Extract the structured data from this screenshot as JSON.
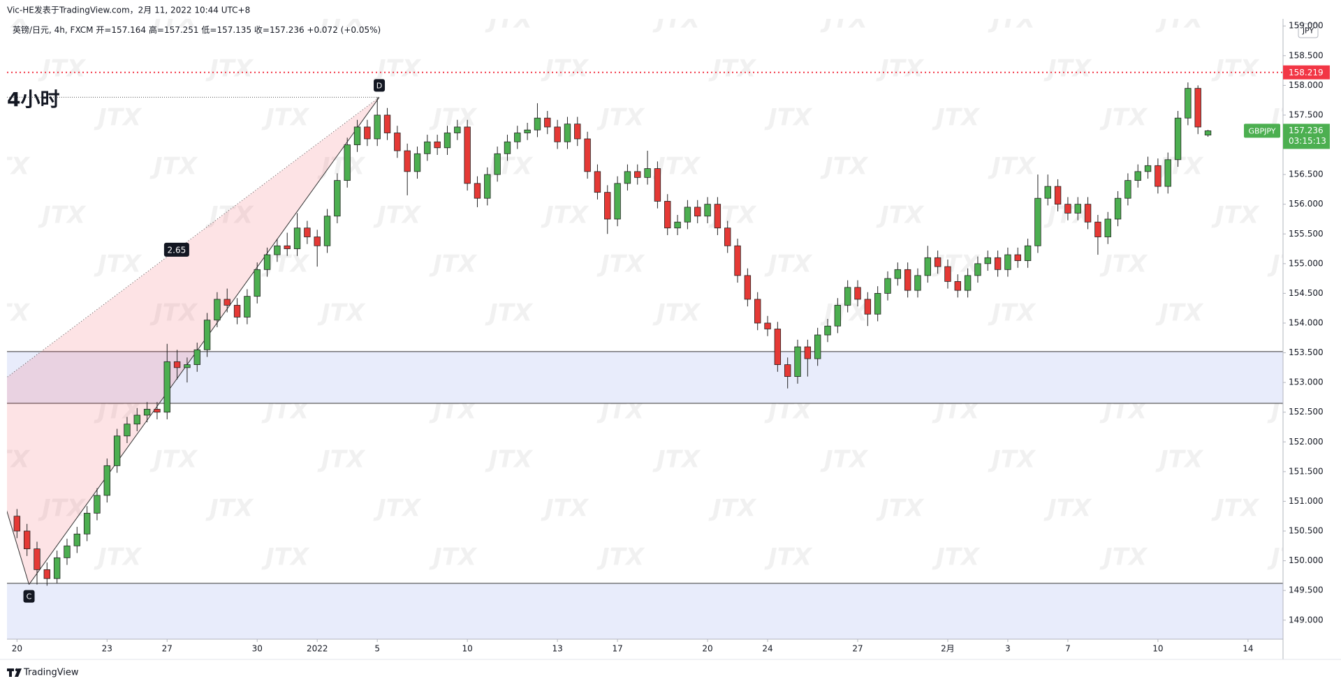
{
  "header": {
    "byline": "Vic-HE发表于TradingView.com，2月 11, 2022 10:44 UTC+8",
    "footer": "TradingView"
  },
  "chart_data": {
    "type": "candlestick",
    "title": "4小时",
    "symbol": "英镑/日元, 4h, FXCM",
    "ohlc_labels": [
      "开=",
      "高=",
      "低=",
      "收="
    ],
    "change": "+0.072 (+0.05%)",
    "currency": "JPY",
    "ticker": "GBPJPY",
    "countdown": "03:15:13",
    "watermark": "JTX",
    "up_color": "#4caf50",
    "down_color": "#e53935",
    "open": [
      150.75,
      150.5,
      150.2,
      149.85,
      149.7,
      150.05,
      150.25,
      150.45,
      150.8,
      151.1,
      151.6,
      152.1,
      152.3,
      152.45,
      152.55,
      152.5,
      153.35,
      153.25,
      153.3,
      153.55,
      154.05,
      154.4,
      154.3,
      154.1,
      154.45,
      154.9,
      155.15,
      155.3,
      155.25,
      155.6,
      155.45,
      155.3,
      155.8,
      156.4,
      157.0,
      157.3,
      157.1,
      157.5,
      157.2,
      156.9,
      156.55,
      156.85,
      157.05,
      156.95,
      157.2,
      157.3,
      156.35,
      156.1,
      156.5,
      156.85,
      157.05,
      157.2,
      157.25,
      157.45,
      157.3,
      157.05,
      157.35,
      157.1,
      156.55,
      156.2,
      155.75,
      156.35,
      156.55,
      156.45,
      156.6,
      156.05,
      155.6,
      155.7,
      155.95,
      155.8,
      156.0,
      155.6,
      155.3,
      154.8,
      154.4,
      154.0,
      153.9,
      153.3,
      153.1,
      153.6,
      153.4,
      153.8,
      153.95,
      154.3,
      154.6,
      154.4,
      154.15,
      154.5,
      154.75,
      154.9,
      154.55,
      154.8,
      155.1,
      154.95,
      154.7,
      154.55,
      154.8,
      155.0,
      155.1,
      154.9,
      155.15,
      155.05,
      155.3,
      156.1,
      156.3,
      156.0,
      155.85,
      156.0,
      155.7,
      155.45,
      155.75,
      156.1,
      156.4,
      156.55,
      156.65,
      156.3,
      156.75,
      157.45,
      157.95,
      157.164
    ],
    "high": [
      150.87,
      150.62,
      150.32,
      149.97,
      150.17,
      150.37,
      150.57,
      150.92,
      151.22,
      151.72,
      152.22,
      152.42,
      152.57,
      152.67,
      152.67,
      153.65,
      153.55,
      153.42,
      153.67,
      154.17,
      154.52,
      154.58,
      154.42,
      154.57,
      155.02,
      155.27,
      155.42,
      155.52,
      155.85,
      155.72,
      155.57,
      155.92,
      156.52,
      157.12,
      157.42,
      157.42,
      157.8,
      157.62,
      157.32,
      157.02,
      156.97,
      157.17,
      157.17,
      157.32,
      157.42,
      157.42,
      156.47,
      156.62,
      156.97,
      157.17,
      157.32,
      157.37,
      157.7,
      157.57,
      157.42,
      157.47,
      157.47,
      157.22,
      156.67,
      156.32,
      156.47,
      156.67,
      156.67,
      156.9,
      156.72,
      156.17,
      155.82,
      156.07,
      156.07,
      156.12,
      156.12,
      155.72,
      155.42,
      154.92,
      154.52,
      154.12,
      154.02,
      153.42,
      153.72,
      153.72,
      153.92,
      154.07,
      154.42,
      154.72,
      154.72,
      154.52,
      154.62,
      154.87,
      155.02,
      155.02,
      154.92,
      155.3,
      155.22,
      155.07,
      154.82,
      154.92,
      155.12,
      155.22,
      155.22,
      155.27,
      155.27,
      155.42,
      156.5,
      156.5,
      156.42,
      156.12,
      156.12,
      156.12,
      155.82,
      155.87,
      156.22,
      156.52,
      156.67,
      156.8,
      156.77,
      156.87,
      157.57,
      158.05,
      158.0,
      157.251
    ],
    "low": [
      150.38,
      150.08,
      149.6,
      149.58,
      149.62,
      149.93,
      150.13,
      150.33,
      150.68,
      150.98,
      151.48,
      151.98,
      152.18,
      152.33,
      152.38,
      152.38,
      153.05,
      153.0,
      153.18,
      153.43,
      153.93,
      154.18,
      153.98,
      153.98,
      154.33,
      154.78,
      155.03,
      155.13,
      155.13,
      155.33,
      154.95,
      155.18,
      155.68,
      156.28,
      156.88,
      156.98,
      156.98,
      157.08,
      156.78,
      156.15,
      156.43,
      156.73,
      156.83,
      156.83,
      157.08,
      156.23,
      155.95,
      155.98,
      156.38,
      156.73,
      156.93,
      157.08,
      157.13,
      157.18,
      156.93,
      156.93,
      156.98,
      156.43,
      156.08,
      155.5,
      155.63,
      156.23,
      156.33,
      156.33,
      155.93,
      155.48,
      155.48,
      155.58,
      155.68,
      155.68,
      155.48,
      155.18,
      154.68,
      154.28,
      153.88,
      153.78,
      153.18,
      152.9,
      152.98,
      153.1,
      153.28,
      153.68,
      153.83,
      154.18,
      154.28,
      153.95,
      154.03,
      154.38,
      154.63,
      154.43,
      154.43,
      154.68,
      154.83,
      154.58,
      154.43,
      154.43,
      154.68,
      154.88,
      154.78,
      154.78,
      154.93,
      154.93,
      155.18,
      155.98,
      155.88,
      155.73,
      155.73,
      155.58,
      155.15,
      155.33,
      155.63,
      155.98,
      156.28,
      156.43,
      156.18,
      156.18,
      156.63,
      157.33,
      157.18,
      157.135
    ],
    "close": [
      150.5,
      150.2,
      149.85,
      149.7,
      150.05,
      150.25,
      150.45,
      150.8,
      151.1,
      151.6,
      152.1,
      152.3,
      152.45,
      152.55,
      152.5,
      153.35,
      153.25,
      153.3,
      153.55,
      154.05,
      154.4,
      154.3,
      154.1,
      154.45,
      154.9,
      155.15,
      155.3,
      155.25,
      155.6,
      155.45,
      155.3,
      155.8,
      156.4,
      157.0,
      157.3,
      157.1,
      157.5,
      157.2,
      156.9,
      156.55,
      156.85,
      157.05,
      156.95,
      157.2,
      157.3,
      156.35,
      156.1,
      156.5,
      156.85,
      157.05,
      157.2,
      157.25,
      157.45,
      157.3,
      157.05,
      157.35,
      157.1,
      156.55,
      156.2,
      155.75,
      156.35,
      156.55,
      156.45,
      156.6,
      156.05,
      155.6,
      155.7,
      155.95,
      155.8,
      156.0,
      155.6,
      155.3,
      154.8,
      154.4,
      154.0,
      153.9,
      153.3,
      153.1,
      153.6,
      153.4,
      153.8,
      153.95,
      154.3,
      154.6,
      154.4,
      154.15,
      154.5,
      154.75,
      154.9,
      154.55,
      154.8,
      155.1,
      154.95,
      154.7,
      154.55,
      154.8,
      155.0,
      155.1,
      154.9,
      155.15,
      155.05,
      155.3,
      156.1,
      156.3,
      156.0,
      155.85,
      156.0,
      155.7,
      155.45,
      155.75,
      156.1,
      156.4,
      156.55,
      156.65,
      156.3,
      156.75,
      157.45,
      157.95,
      157.3,
      157.236
    ],
    "xlim": [
      -1,
      126.5
    ],
    "xticks": [
      {
        "value": 0,
        "label": "20"
      },
      {
        "value": 9,
        "label": "23"
      },
      {
        "value": 15,
        "label": "27"
      },
      {
        "value": 24,
        "label": "30"
      },
      {
        "value": 30,
        "label": "2022"
      },
      {
        "value": 36,
        "label": "5"
      },
      {
        "value": 45,
        "label": "10"
      },
      {
        "value": 54,
        "label": "13"
      },
      {
        "value": 60,
        "label": "17"
      },
      {
        "value": 69,
        "label": "20"
      },
      {
        "value": 75,
        "label": "24"
      },
      {
        "value": 84,
        "label": "27"
      },
      {
        "value": 93,
        "label": "2月"
      },
      {
        "value": 99,
        "label": "3"
      },
      {
        "value": 105,
        "label": "7"
      },
      {
        "value": 114,
        "label": "10"
      },
      {
        "value": 123,
        "label": "14"
      }
    ],
    "ylim": [
      148.68,
      159.12
    ],
    "yticks": [
      {
        "value": 149,
        "label": "149.000"
      },
      {
        "value": 149.5,
        "label": "149.500"
      },
      {
        "value": 150,
        "label": "150.000"
      },
      {
        "value": 150.5,
        "label": "150.500"
      },
      {
        "value": 151,
        "label": "151.000"
      },
      {
        "value": 151.5,
        "label": "151.500"
      },
      {
        "value": 152,
        "label": "152.000"
      },
      {
        "value": 152.5,
        "label": "152.500"
      },
      {
        "value": 153,
        "label": "153.000"
      },
      {
        "value": 153.5,
        "label": "153.500"
      },
      {
        "value": 154,
        "label": "154.000"
      },
      {
        "value": 154.5,
        "label": "154.500"
      },
      {
        "value": 155,
        "label": "155.000"
      },
      {
        "value": 155.5,
        "label": "155.500"
      },
      {
        "value": 156,
        "label": "156.000"
      },
      {
        "value": 156.5,
        "label": "156.500"
      },
      {
        "value": 157,
        "label": "157.000"
      },
      {
        "value": 157.5,
        "label": "157.500"
      },
      {
        "value": 158,
        "label": "158.000"
      },
      {
        "value": 158.5,
        "label": "158.500"
      },
      {
        "value": 159,
        "label": "159.000"
      }
    ],
    "alert_line": 158.219,
    "alert_color": "#f23645",
    "zones": [
      {
        "from": 152.65,
        "to": 153.52
      },
      {
        "from": 148.68,
        "to": 149.62
      }
    ],
    "pattern": {
      "points": [
        {
          "index": -4.3,
          "price": 152.67
        },
        {
          "label": "C",
          "index": 1.2,
          "price": 149.6
        },
        {
          "label": "D",
          "index": 36.2,
          "price": 157.8
        }
      ],
      "ratio": 2.65
    }
  }
}
